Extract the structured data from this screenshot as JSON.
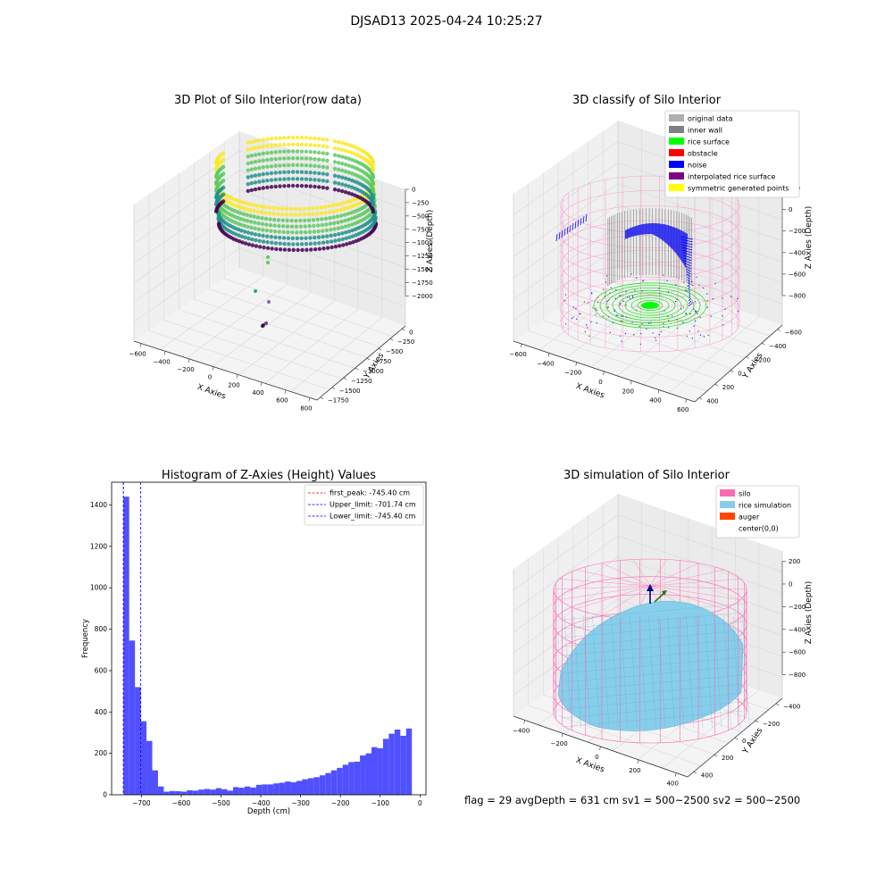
{
  "figure": {
    "suptitle": "DJSAD13 2025-04-24 10:25:27",
    "footer": "flag = 29  avgDepth = 631 cm  sv1 = 500~2500  sv2 = 500~2500"
  },
  "chart_data": [
    {
      "type": "scatter3d",
      "title": "3D Plot of Silo Interior(row data)",
      "xlabel": "X Axies",
      "ylabel": "Y Axies",
      "zlabel": "Z Axies (Depth)",
      "xticks": [
        "−600",
        "−400",
        "−200",
        "0",
        "200",
        "400",
        "600",
        "800"
      ],
      "yticks": [
        "0",
        "−250",
        "−500",
        "−750",
        "−1000",
        "−1250",
        "−1500",
        "−1750"
      ],
      "zticks": [
        "0",
        "−250",
        "−500",
        "−750",
        "−1000",
        "−1250",
        "−1500",
        "−1750",
        "−2000"
      ],
      "xlim": [
        -700,
        800
      ],
      "ylim": [
        -1800,
        100
      ],
      "zlim": [
        -2100,
        100
      ],
      "colormap": [
        "#440154",
        "#21918c",
        "#5ec962",
        "#fde725"
      ]
    },
    {
      "type": "scatter3d",
      "title": "3D classify of Silo Interior",
      "xlabel": "X Axies",
      "ylabel": "Y Axies",
      "zlabel": "Z Axies (Depth)",
      "xticks": [
        "−600",
        "−400",
        "−200",
        "0",
        "200",
        "400",
        "600"
      ],
      "yticks": [
        "−600",
        "−400",
        "−200",
        "0",
        "200",
        "400"
      ],
      "zticks": [
        "200",
        "0",
        "−200",
        "−400",
        "−600",
        "−800"
      ],
      "legend_position": "top-right",
      "legend": [
        {
          "label": "original data",
          "color": "#b0b0b0"
        },
        {
          "label": "inner wall",
          "color": "#808080"
        },
        {
          "label": "rice surface",
          "color": "#00ff00"
        },
        {
          "label": "obstacle",
          "color": "#ff0000"
        },
        {
          "label": "noise",
          "color": "#0000ff"
        },
        {
          "label": "interpolated rice surface",
          "color": "#800080"
        },
        {
          "label": "symmetric generated points",
          "color": "#ffff00"
        }
      ]
    },
    {
      "type": "bar",
      "title": "Histogram of Z-Axies (Height) Values",
      "xlabel": "Depth (cm)",
      "ylabel": "Frequency",
      "xlim": [
        -775,
        15
      ],
      "ylim": [
        0,
        1510
      ],
      "xticks": [
        -700,
        -600,
        -500,
        -400,
        -300,
        -200,
        -100,
        0
      ],
      "yticks": [
        0,
        200,
        400,
        600,
        800,
        1000,
        1200,
        1400
      ],
      "bar_color": "#5050ff",
      "bin_start": -745.4,
      "bin_width": 14.5,
      "values": [
        1440,
        745,
        520,
        355,
        260,
        118,
        40,
        15,
        18,
        17,
        15,
        22,
        20,
        25,
        28,
        25,
        32,
        27,
        20,
        37,
        34,
        40,
        35,
        48,
        50,
        50,
        55,
        58,
        64,
        60,
        67,
        75,
        80,
        85,
        94,
        105,
        118,
        130,
        145,
        158,
        160,
        190,
        200,
        230,
        225,
        270,
        295,
        315,
        285,
        320
      ],
      "legend_position": "top-right",
      "lines": [
        {
          "label": "first_peak: -745.40 cm",
          "value": -745.4,
          "color": "#ff0000"
        },
        {
          "label": "Upper_limit: -701.74 cm",
          "value": -701.74,
          "color": "#0000ff"
        },
        {
          "label": "Lower_limit: -745.40 cm",
          "value": -745.4,
          "color": "#0000ff"
        }
      ]
    },
    {
      "type": "surface3d",
      "title": "3D simulation of Silo Interior",
      "xlabel": "X Axies",
      "ylabel": "Y Axies",
      "zlabel": "Z Axies (Depth)",
      "xticks": [
        "−400",
        "−200",
        "0",
        "200",
        "400"
      ],
      "yticks": [
        "−400",
        "−200",
        "0",
        "200",
        "400"
      ],
      "zticks": [
        "200",
        "0",
        "−200",
        "−400",
        "−600",
        "−800"
      ],
      "legend_position": "top-right",
      "legend": [
        {
          "label": "silo",
          "color": "#ff69b4"
        },
        {
          "label": "rice simulation",
          "color": "#87ceeb"
        },
        {
          "label": "auger",
          "color": "#ff4500"
        },
        {
          "label": "center(0,0)",
          "color": "#ffffff"
        }
      ]
    }
  ]
}
